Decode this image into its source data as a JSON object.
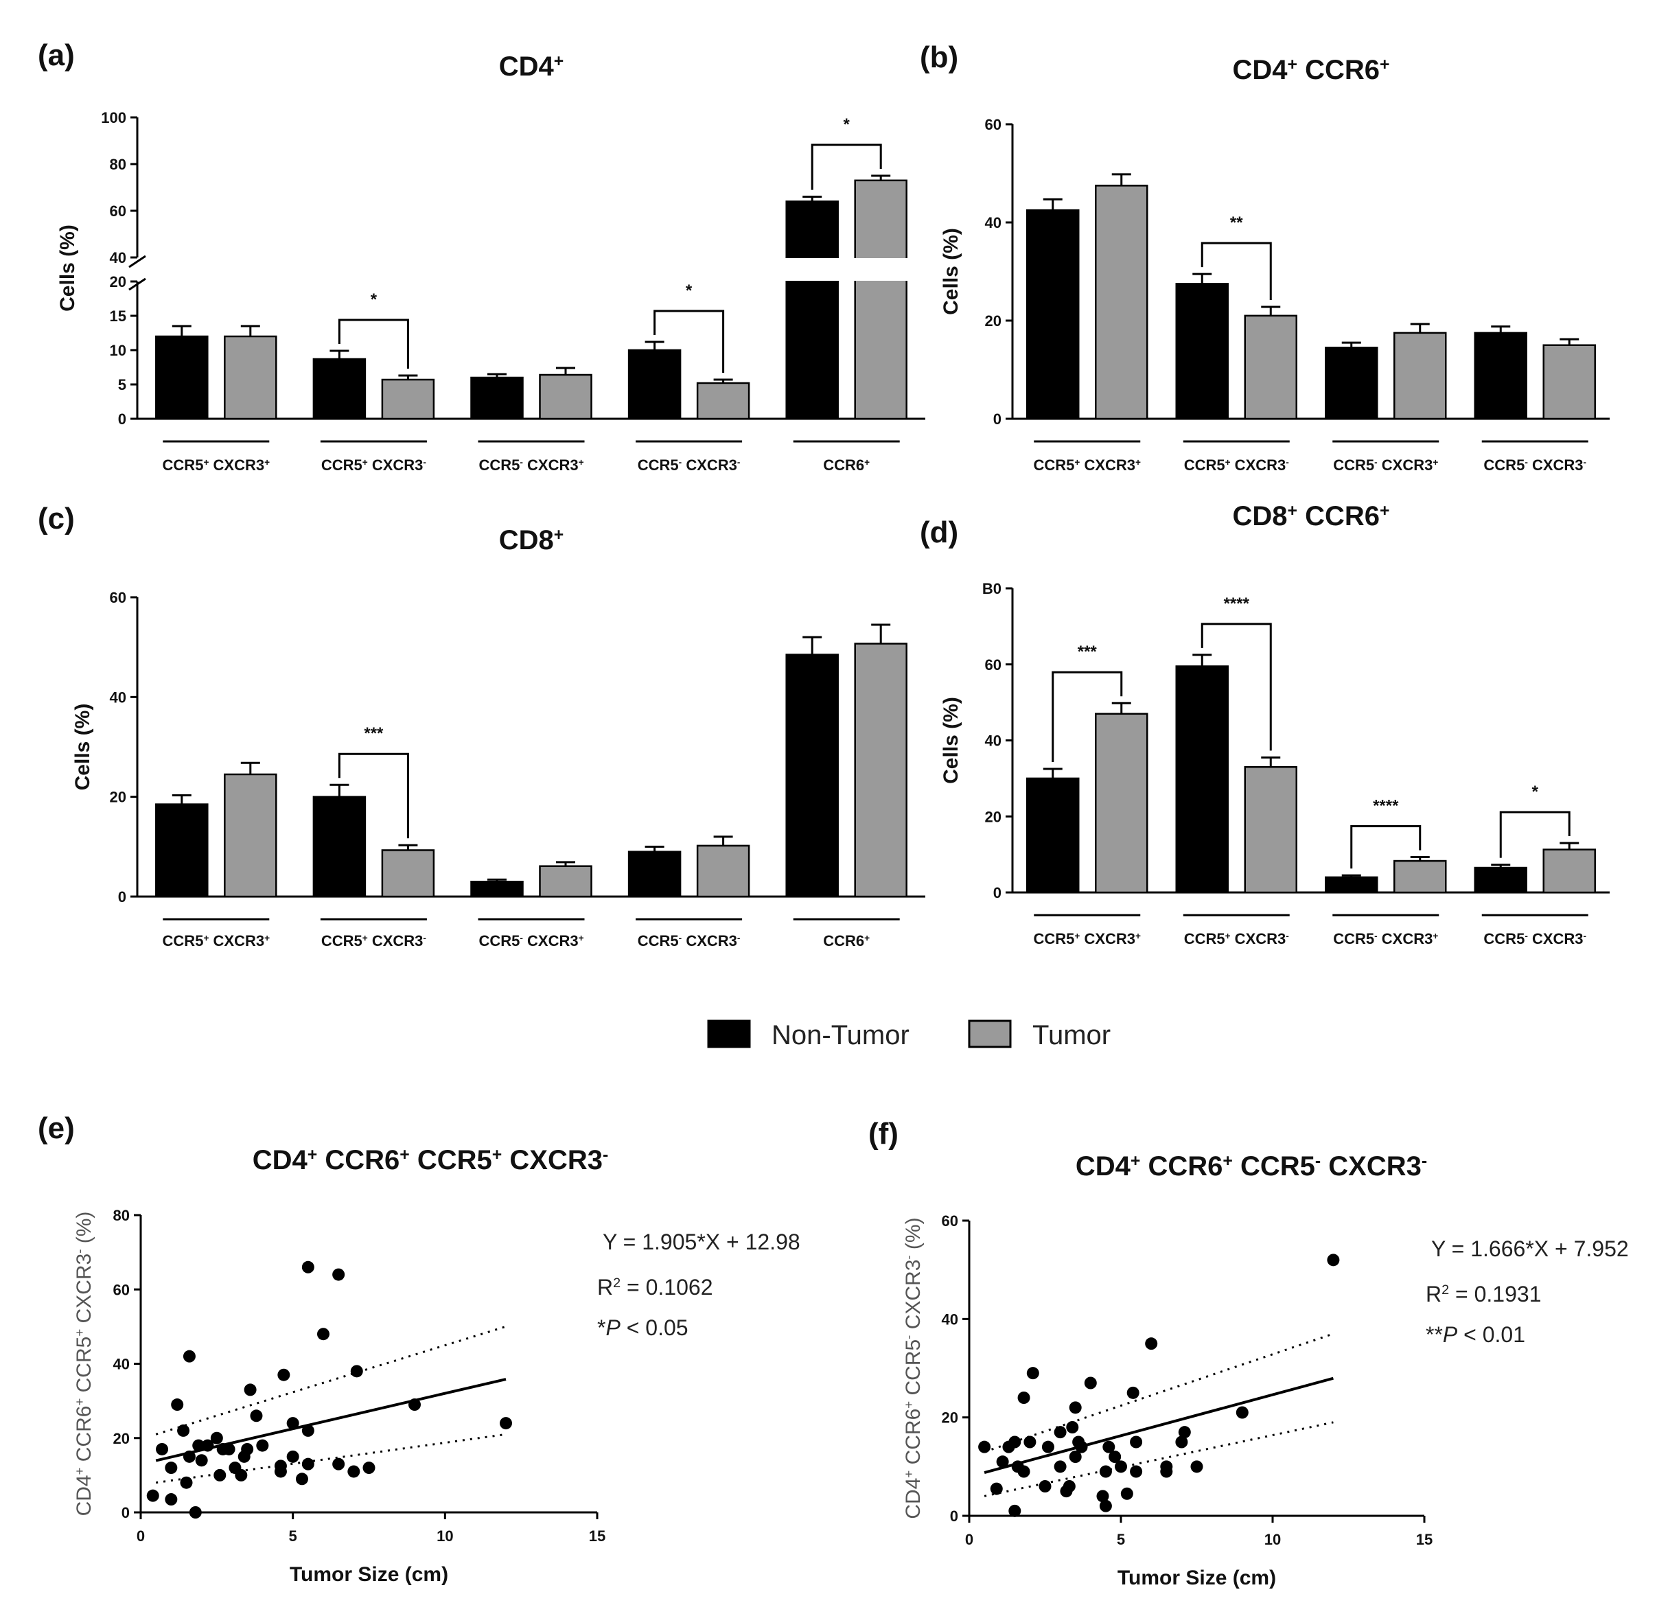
{
  "legend": {
    "items": [
      {
        "name": "Non-Tumor",
        "color": "#000000"
      },
      {
        "name": "Tumor",
        "color": "#9a9a9a"
      }
    ]
  },
  "chart_data": [
    {
      "panel": "(a)",
      "type": "bar",
      "title": "CD4",
      "title_sup": "+",
      "ylabel": "Cells (%)",
      "ylim_lower": [
        0,
        20
      ],
      "ylim_upper": [
        40,
        100
      ],
      "yticks_lower": [
        "0",
        "5",
        "10",
        "15",
        "20"
      ],
      "yticks_upper": [
        "40",
        "60",
        "80",
        "100"
      ],
      "groups": [
        {
          "label": [
            [
              "CCR5",
              "+"
            ],
            [
              " CXCR3",
              "+"
            ]
          ],
          "values": [
            12.0,
            12.0
          ],
          "errors": [
            1.5,
            1.5
          ]
        },
        {
          "label": [
            [
              "CCR5",
              "+"
            ],
            [
              " CXCR3",
              "-"
            ]
          ],
          "values": [
            8.7,
            5.7
          ],
          "errors": [
            1.2,
            0.6
          ],
          "sig": "*"
        },
        {
          "label": [
            [
              "CCR5",
              "-"
            ],
            [
              " CXCR3",
              "+"
            ]
          ],
          "values": [
            6.0,
            6.4
          ],
          "errors": [
            0.5,
            1.0
          ]
        },
        {
          "label": [
            [
              "CCR5",
              "-"
            ],
            [
              " CXCR3",
              "-"
            ]
          ],
          "values": [
            10.0,
            5.2
          ],
          "errors": [
            1.2,
            0.5
          ],
          "sig": "*"
        },
        {
          "label": [
            [
              "CCR6",
              "+"
            ]
          ],
          "values": [
            64,
            73
          ],
          "errors": [
            2,
            2
          ],
          "sig": "*"
        }
      ]
    },
    {
      "panel": "(b)",
      "type": "bar",
      "title": "CD4",
      "title_sup": "+",
      "title_rest": " CCR6",
      "title_sup2": "+",
      "ylabel": "Cells (%)",
      "ylim": [
        0,
        60
      ],
      "yticks": [
        "0",
        "20",
        "40",
        "60"
      ],
      "groups": [
        {
          "label": [
            [
              "CCR5",
              "+"
            ],
            [
              " CXCR3",
              "+"
            ]
          ],
          "values": [
            42.5,
            47.5
          ],
          "errors": [
            2.2,
            2.3
          ]
        },
        {
          "label": [
            [
              "CCR5",
              "+"
            ],
            [
              " CXCR3",
              "-"
            ]
          ],
          "values": [
            27.5,
            21.0
          ],
          "errors": [
            2.0,
            1.8
          ],
          "sig": "**"
        },
        {
          "label": [
            [
              "CCR5",
              "-"
            ],
            [
              " CXCR3",
              "+"
            ]
          ],
          "values": [
            14.5,
            17.5
          ],
          "errors": [
            1.0,
            1.8
          ]
        },
        {
          "label": [
            [
              "CCR5",
              "-"
            ],
            [
              " CXCR3",
              "-"
            ]
          ],
          "values": [
            17.5,
            15.0
          ],
          "errors": [
            1.3,
            1.2
          ]
        }
      ]
    },
    {
      "panel": "(c)",
      "type": "bar",
      "title": "CD8",
      "title_sup": "+",
      "ylabel": "Cells (%)",
      "ylim": [
        0,
        60
      ],
      "yticks": [
        "0",
        "20",
        "40",
        "60"
      ],
      "groups": [
        {
          "label": [
            [
              "CCR5",
              "+"
            ],
            [
              " CXCR3",
              "+"
            ]
          ],
          "values": [
            18.5,
            24.5
          ],
          "errors": [
            1.8,
            2.3
          ]
        },
        {
          "label": [
            [
              "CCR5",
              "+"
            ],
            [
              " CXCR3",
              "-"
            ]
          ],
          "values": [
            20.0,
            9.3
          ],
          "errors": [
            2.4,
            1.0
          ],
          "sig": "***"
        },
        {
          "label": [
            [
              "CCR5",
              "-"
            ],
            [
              " CXCR3",
              "+"
            ]
          ],
          "values": [
            3.0,
            6.1
          ],
          "errors": [
            0.4,
            0.8
          ]
        },
        {
          "label": [
            [
              "CCR5",
              "-"
            ],
            [
              " CXCR3",
              "-"
            ]
          ],
          "values": [
            9.0,
            10.2
          ],
          "errors": [
            1.0,
            1.8
          ]
        },
        {
          "label": [
            [
              "CCR6",
              "+"
            ]
          ],
          "values": [
            48.5,
            50.7
          ],
          "errors": [
            3.5,
            3.8
          ]
        }
      ]
    },
    {
      "panel": "(d)",
      "type": "bar",
      "title": "CD8",
      "title_sup": "+",
      "title_rest": " CCR6",
      "title_sup2": "+",
      "ylabel": "Cells (%)",
      "ylim": [
        0,
        80
      ],
      "yticks": [
        "0",
        "20",
        "40",
        "60",
        "B0"
      ],
      "groups": [
        {
          "label": [
            [
              "CCR5",
              "+"
            ],
            [
              " CXCR3",
              "+"
            ]
          ],
          "values": [
            30.0,
            47.0
          ],
          "errors": [
            2.5,
            2.8
          ],
          "sig": "***"
        },
        {
          "label": [
            [
              "CCR5",
              "+"
            ],
            [
              " CXCR3",
              "-"
            ]
          ],
          "values": [
            59.5,
            33.0
          ],
          "errors": [
            3.0,
            2.5
          ],
          "sig": "****"
        },
        {
          "label": [
            [
              "CCR5",
              "-"
            ],
            [
              " CXCR3",
              "+"
            ]
          ],
          "values": [
            4.0,
            8.3
          ],
          "errors": [
            0.5,
            1.0
          ],
          "sig": "****"
        },
        {
          "label": [
            [
              "CCR5",
              "-"
            ],
            [
              " CXCR3",
              "-"
            ]
          ],
          "values": [
            6.5,
            11.3
          ],
          "errors": [
            0.8,
            1.7
          ],
          "sig": "*"
        }
      ]
    },
    {
      "panel": "(e)",
      "type": "scatter",
      "title_parts": [
        [
          "CD4",
          "+"
        ],
        [
          " CCR6",
          "+"
        ],
        [
          " CCR5",
          "+"
        ],
        [
          " CXCR3",
          "-"
        ]
      ],
      "xlabel": "Tumor Size (cm)",
      "ylabel_parts": [
        [
          "CD4",
          "+"
        ],
        [
          " CCR6",
          "+"
        ],
        [
          " CCR5",
          "+"
        ],
        [
          " CXCR3",
          "-"
        ],
        [
          " (%)",
          ""
        ]
      ],
      "xlim": [
        0,
        15
      ],
      "ylim": [
        0,
        80
      ],
      "xticks": [
        "0",
        "5",
        "10",
        "15"
      ],
      "yticks": [
        "0",
        "20",
        "40",
        "60",
        "80"
      ],
      "fit": {
        "slope": 1.905,
        "intercept": 12.98,
        "x_range": [
          0.5,
          12
        ],
        "ci_upper": [
          [
            0.5,
            21
          ],
          [
            12,
            50
          ]
        ],
        "ci_lower": [
          [
            0.5,
            8
          ],
          [
            12,
            21
          ]
        ]
      },
      "equation": "Y = 1.905*X + 12.98",
      "r2_prefix": "R",
      "r2_sup": "2",
      "r2_suffix": " = 0.1062",
      "p_prefix": "*",
      "p_italic": "P",
      "p_suffix": " < 0.05",
      "points": [
        [
          0.4,
          4.5
        ],
        [
          0.7,
          17
        ],
        [
          1.0,
          3.5
        ],
        [
          1.0,
          12
        ],
        [
          1.2,
          29
        ],
        [
          1.4,
          22
        ],
        [
          1.5,
          8
        ],
        [
          1.6,
          15
        ],
        [
          1.6,
          42
        ],
        [
          1.8,
          0
        ],
        [
          1.9,
          18
        ],
        [
          2.0,
          14
        ],
        [
          2.2,
          18
        ],
        [
          2.5,
          20
        ],
        [
          2.6,
          10
        ],
        [
          2.7,
          17
        ],
        [
          2.9,
          17
        ],
        [
          3.1,
          12
        ],
        [
          3.3,
          10
        ],
        [
          3.4,
          15
        ],
        [
          3.5,
          17
        ],
        [
          3.6,
          33
        ],
        [
          3.8,
          26
        ],
        [
          4.0,
          18
        ],
        [
          4.6,
          11
        ],
        [
          4.6,
          12.5
        ],
        [
          4.7,
          37
        ],
        [
          5.0,
          24
        ],
        [
          5.0,
          15
        ],
        [
          5.3,
          9
        ],
        [
          5.5,
          22
        ],
        [
          5.5,
          66
        ],
        [
          5.5,
          13
        ],
        [
          6.0,
          48
        ],
        [
          6.5,
          13
        ],
        [
          6.5,
          64
        ],
        [
          7.0,
          11
        ],
        [
          7.1,
          38
        ],
        [
          7.5,
          12
        ],
        [
          9.0,
          29
        ],
        [
          12.0,
          24
        ]
      ]
    },
    {
      "panel": "(f)",
      "type": "scatter",
      "title_parts": [
        [
          "CD4",
          "+"
        ],
        [
          " CCR6",
          "+"
        ],
        [
          " CCR5",
          "-"
        ],
        [
          " CXCR3",
          "-"
        ]
      ],
      "xlabel": "Tumor Size (cm)",
      "ylabel_parts": [
        [
          "CD4",
          "+"
        ],
        [
          " CCR6",
          "+"
        ],
        [
          " CCR5",
          "-"
        ],
        [
          " CXCR3",
          "-"
        ],
        [
          " (%)",
          ""
        ]
      ],
      "xlim": [
        0,
        15
      ],
      "ylim": [
        0,
        60
      ],
      "xticks": [
        "0",
        "5",
        "10",
        "15"
      ],
      "yticks": [
        "0",
        "20",
        "40",
        "60"
      ],
      "fit": {
        "slope": 1.666,
        "intercept": 7.952,
        "x_range": [
          0.5,
          12
        ],
        "ci_upper": [
          [
            0.5,
            13
          ],
          [
            12,
            37
          ]
        ],
        "ci_lower": [
          [
            0.5,
            4
          ],
          [
            12,
            19
          ]
        ]
      },
      "equation": "Y = 1.666*X + 7.952",
      "r2_prefix": "R",
      "r2_sup": "2",
      "r2_suffix": " = 0.1931",
      "p_prefix": "**",
      "p_italic": "P",
      "p_suffix": " < 0.01",
      "points": [
        [
          0.5,
          14
        ],
        [
          0.9,
          5.5
        ],
        [
          1.1,
          11
        ],
        [
          1.3,
          14
        ],
        [
          1.5,
          1
        ],
        [
          1.5,
          15
        ],
        [
          1.6,
          10
        ],
        [
          1.8,
          24
        ],
        [
          1.8,
          9
        ],
        [
          2.0,
          15
        ],
        [
          2.1,
          29
        ],
        [
          2.5,
          6
        ],
        [
          2.6,
          14
        ],
        [
          3.0,
          17
        ],
        [
          3.0,
          10
        ],
        [
          3.2,
          5
        ],
        [
          3.3,
          6
        ],
        [
          3.4,
          18
        ],
        [
          3.5,
          12
        ],
        [
          3.5,
          22
        ],
        [
          3.6,
          15
        ],
        [
          3.7,
          14
        ],
        [
          4.0,
          27
        ],
        [
          4.4,
          4
        ],
        [
          4.5,
          2
        ],
        [
          4.5,
          9
        ],
        [
          4.6,
          14
        ],
        [
          4.8,
          12
        ],
        [
          5.0,
          10
        ],
        [
          5.2,
          4.5
        ],
        [
          5.4,
          25
        ],
        [
          5.5,
          9
        ],
        [
          5.5,
          15
        ],
        [
          6.0,
          35
        ],
        [
          6.5,
          9
        ],
        [
          6.5,
          10
        ],
        [
          7.0,
          15
        ],
        [
          7.1,
          17
        ],
        [
          7.5,
          10
        ],
        [
          9.0,
          21
        ],
        [
          12.0,
          52
        ]
      ]
    }
  ]
}
